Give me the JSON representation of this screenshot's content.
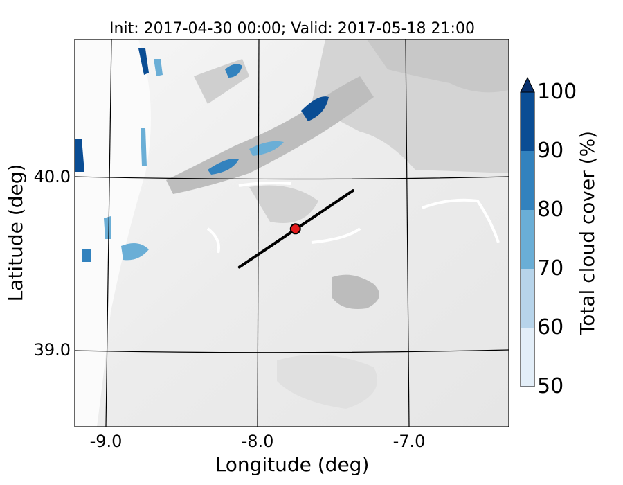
{
  "chart_data": {
    "type": "heatmap",
    "title": "Init: 2017-04-30 00:00; Valid: 2017-05-18 21:00",
    "xlabel": "Longitude (deg)",
    "ylabel": "Latitude (deg)",
    "x_ticks": [
      "-9.0",
      "-8.0",
      "-7.0"
    ],
    "y_ticks": [
      "40.0",
      "39.0"
    ],
    "xlim": [
      -9.2,
      -6.35
    ],
    "ylim": [
      38.55,
      40.8
    ],
    "grid": true,
    "colorbar": {
      "label": "Total cloud cover (%)",
      "ticks": [
        "50",
        "60",
        "70",
        "80",
        "90",
        "100"
      ],
      "levels": [
        50,
        60,
        70,
        80,
        90,
        100
      ],
      "colors": [
        "#e3eef8",
        "#b7d4ea",
        "#6aaed6",
        "#3282be",
        "#0a4d94"
      ],
      "extend": "max",
      "extend_color": "#08306b"
    },
    "marker": {
      "lon": -7.75,
      "lat": 39.7,
      "color": "#e41a1c"
    },
    "transect": {
      "start": [
        -8.12,
        39.48
      ],
      "end": [
        -7.37,
        39.92
      ],
      "color": "#000000"
    }
  }
}
